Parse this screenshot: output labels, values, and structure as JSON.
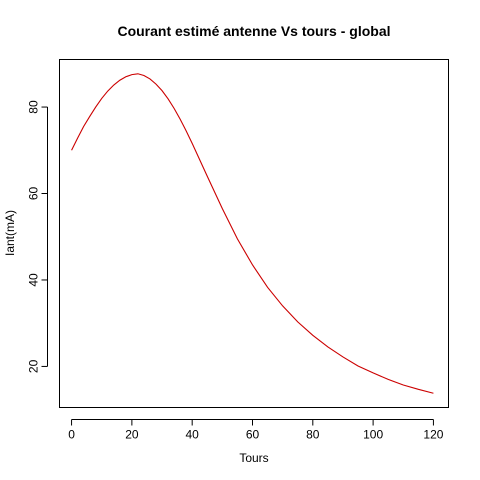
{
  "chart_data": {
    "type": "line",
    "title": "Courant estimé antenne Vs tours - global",
    "xlabel": "Tours",
    "ylabel": "Iant(mA)",
    "xlim": [
      -4,
      125
    ],
    "ylim": [
      10.5,
      91
    ],
    "xticks": [
      0,
      20,
      40,
      60,
      80,
      100,
      120
    ],
    "yticks": [
      20,
      40,
      60,
      80
    ],
    "grid": false,
    "legend": "none",
    "series": [
      {
        "color": "#cc0000",
        "x": [
          0,
          2,
          4,
          6,
          8,
          10,
          12,
          14,
          16,
          18,
          20,
          22,
          24,
          26,
          28,
          30,
          32,
          34,
          36,
          38,
          40,
          45,
          50,
          55,
          60,
          65,
          70,
          75,
          80,
          85,
          90,
          95,
          100,
          105,
          110,
          115,
          120
        ],
        "y": [
          70,
          72.8,
          75.5,
          77.8,
          80,
          82,
          83.7,
          85.1,
          86.2,
          87,
          87.5,
          87.7,
          87.3,
          86.5,
          85.3,
          83.8,
          81.9,
          79.7,
          77.2,
          74.5,
          71.6,
          64,
          56.5,
          49.5,
          43.5,
          38.3,
          34,
          30.3,
          27.2,
          24.5,
          22.2,
          20.1,
          18.5,
          17,
          15.7,
          14.7,
          13.8
        ]
      }
    ]
  }
}
